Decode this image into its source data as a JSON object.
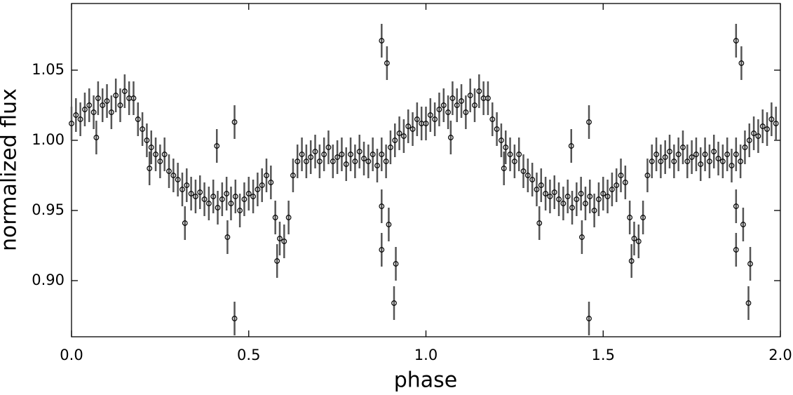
{
  "chart_data": {
    "type": "scatter",
    "x_label": "phase",
    "y_label": "normalized flux",
    "xlim": [
      0,
      2
    ],
    "ylim": [
      0.86,
      1.0975
    ],
    "xticks": [
      {
        "value": 0,
        "label": "0.0"
      },
      0.5,
      {
        "value": 1,
        "label": "1.0"
      },
      1.5,
      {
        "value": 2,
        "label": "2.0"
      }
    ],
    "yticks": [
      {
        "value": 0.9,
        "label": "0.90"
      },
      0.95,
      {
        "value": 1,
        "label": "1.00"
      },
      1.05
    ],
    "marker_color": "#000000",
    "error_color": "#555555",
    "yerr": 0.012,
    "x": [
      0,
      0.0125,
      0.025,
      0.0375,
      0.05,
      0.0625,
      0.075,
      0.0875,
      0.1,
      0.1125,
      0.125,
      0.1375,
      0.15,
      0.1625,
      0.175,
      0.1875,
      0.2,
      0.2125,
      0.225,
      0.2375,
      0.25,
      0.2625,
      0.275,
      0.2875,
      0.3,
      0.3125,
      0.325,
      0.3375,
      0.35,
      0.3625,
      0.375,
      0.3875,
      0.4,
      0.4125,
      0.425,
      0.4375,
      0.45,
      0.4625,
      0.475,
      0.4875,
      0.5,
      0.5125,
      0.525,
      0.5375,
      0.55,
      0.5625,
      0.575,
      0.5875,
      0.6,
      0.6125,
      0.625,
      0.6375,
      0.65,
      0.6625,
      0.675,
      0.6875,
      0.7,
      0.7125,
      0.725,
      0.7375,
      0.75,
      0.7625,
      0.775,
      0.7875,
      0.8,
      0.8125,
      0.825,
      0.8375,
      0.85,
      0.8625,
      0.875,
      0.8875,
      0.9,
      0.9125,
      0.925,
      0.9375,
      0.95,
      0.9625,
      0.975,
      0.9875,
      0.07,
      0.22,
      0.32,
      0.41,
      0.44,
      0.46,
      0.46,
      0.58,
      0.875,
      0.875,
      0.875,
      0.89,
      0.895,
      0.91,
      0.915,
      1,
      1.0125,
      1.025,
      1.0375,
      1.05,
      1.0625,
      1.075,
      1.0875,
      1.1,
      1.1125,
      1.125,
      1.1375,
      1.15,
      1.1625,
      1.175,
      1.1875,
      1.2,
      1.2125,
      1.225,
      1.2375,
      1.25,
      1.2625,
      1.275,
      1.2875,
      1.3,
      1.3125,
      1.325,
      1.3375,
      1.35,
      1.3625,
      1.375,
      1.3875,
      1.4,
      1.4125,
      1.425,
      1.4375,
      1.45,
      1.4625,
      1.475,
      1.4875,
      1.5,
      1.5125,
      1.525,
      1.5375,
      1.55,
      1.5625,
      1.575,
      1.5875,
      1.6,
      1.6125,
      1.625,
      1.6375,
      1.65,
      1.6625,
      1.675,
      1.6875,
      1.7,
      1.7125,
      1.725,
      1.7375,
      1.75,
      1.7625,
      1.775,
      1.7875,
      1.8,
      1.8125,
      1.825,
      1.8375,
      1.85,
      1.8625,
      1.875,
      1.8875,
      1.9,
      1.9125,
      1.925,
      1.9375,
      1.95,
      1.9625,
      1.975,
      1.9875,
      1.07,
      1.22,
      1.32,
      1.41,
      1.44,
      1.46,
      1.46,
      1.58,
      1.875,
      1.875,
      1.875,
      1.89,
      1.895,
      1.91,
      1.915
    ],
    "values": [
      1.012,
      1.018,
      1.015,
      1.022,
      1.025,
      1.02,
      1.03,
      1.025,
      1.028,
      1.02,
      1.032,
      1.025,
      1.035,
      1.03,
      1.03,
      1.015,
      1.008,
      1,
      0.995,
      0.99,
      0.985,
      0.99,
      0.978,
      0.975,
      0.972,
      0.965,
      0.968,
      0.962,
      0.96,
      0.963,
      0.958,
      0.955,
      0.96,
      0.952,
      0.958,
      0.962,
      0.955,
      0.96,
      0.95,
      0.958,
      0.962,
      0.96,
      0.965,
      0.968,
      0.975,
      0.97,
      0.945,
      0.93,
      0.928,
      0.945,
      0.975,
      0.985,
      0.99,
      0.985,
      0.988,
      0.992,
      0.985,
      0.99,
      0.995,
      0.985,
      0.988,
      0.99,
      0.983,
      0.99,
      0.985,
      0.992,
      0.987,
      0.985,
      0.99,
      0.982,
      0.99,
      0.985,
      0.995,
      1,
      1.005,
      1.003,
      1.01,
      1.008,
      1.015,
      1.012,
      1.002,
      0.98,
      0.941,
      0.996,
      0.931,
      0.873,
      1.013,
      0.914,
      1.071,
      0.953,
      0.922,
      1.055,
      0.94,
      0.884,
      0.912,
      1.012,
      1.018,
      1.015,
      1.022,
      1.025,
      1.02,
      1.03,
      1.025,
      1.028,
      1.02,
      1.032,
      1.025,
      1.035,
      1.03,
      1.03,
      1.015,
      1.008,
      1,
      0.995,
      0.99,
      0.985,
      0.99,
      0.978,
      0.975,
      0.972,
      0.965,
      0.968,
      0.962,
      0.96,
      0.963,
      0.958,
      0.955,
      0.96,
      0.952,
      0.958,
      0.962,
      0.955,
      0.96,
      0.95,
      0.958,
      0.962,
      0.96,
      0.965,
      0.968,
      0.975,
      0.97,
      0.945,
      0.93,
      0.928,
      0.945,
      0.975,
      0.985,
      0.99,
      0.985,
      0.988,
      0.992,
      0.985,
      0.99,
      0.995,
      0.985,
      0.988,
      0.99,
      0.983,
      0.99,
      0.985,
      0.992,
      0.987,
      0.985,
      0.99,
      0.982,
      0.99,
      0.985,
      0.995,
      1,
      1.005,
      1.003,
      1.01,
      1.008,
      1.015,
      1.012,
      1.002,
      0.98,
      0.941,
      0.996,
      0.931,
      0.873,
      1.013,
      0.914,
      1.071,
      0.953,
      0.922,
      1.055,
      0.94,
      0.884,
      0.912
    ]
  }
}
